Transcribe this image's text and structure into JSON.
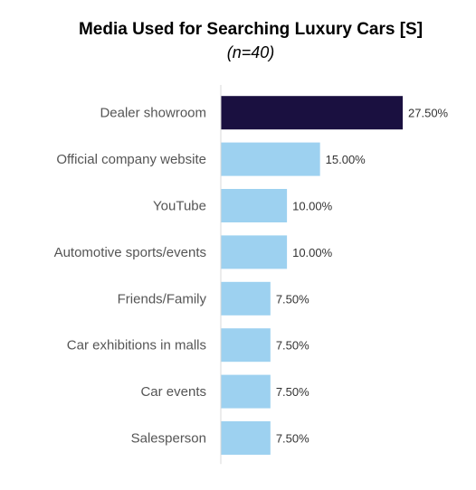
{
  "chart_data": {
    "type": "bar",
    "orientation": "horizontal",
    "title": "Media Used for Searching Luxury Cars [S]",
    "subtitle": "(n=40)",
    "categories": [
      "Dealer showroom",
      "Official company website",
      "YouTube",
      "Automotive sports/events",
      "Friends/Family",
      "Car exhibitions in malls",
      "Car events",
      "Salesperson"
    ],
    "values": [
      27.5,
      15.0,
      10.0,
      10.0,
      7.5,
      7.5,
      7.5,
      7.5
    ],
    "value_labels": [
      "27.50%",
      "15.00%",
      "10.00%",
      "10.00%",
      "7.50%",
      "7.50%",
      "7.50%",
      "7.50%"
    ],
    "colors": {
      "highlight": "#1a1040",
      "default": "#9dd1f0",
      "axis": "#d9d9d9"
    },
    "grid": false,
    "legend": "none"
  }
}
